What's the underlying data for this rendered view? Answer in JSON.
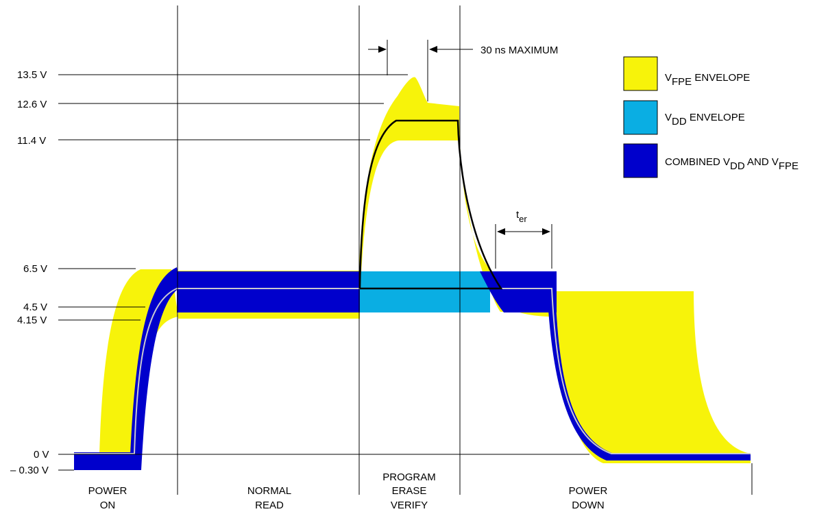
{
  "voltage_labels": [
    "13.5 V",
    "12.6 V",
    "11.4 V",
    "6.5 V",
    "4.5 V",
    "4.15 V",
    "0 V",
    "– 0.30 V"
  ],
  "phases": {
    "power_on": [
      "POWER",
      "ON"
    ],
    "normal_read": [
      "NORMAL",
      "READ"
    ],
    "program_erase_verify": [
      "PROGRAM",
      "ERASE",
      "VERIFY"
    ],
    "power_down": [
      "POWER",
      "DOWN"
    ]
  },
  "annotations": {
    "timing_max": "30 ns MAXIMUM",
    "ter_main": "t",
    "ter_sub": "er"
  },
  "legend": {
    "fpe": {
      "prefix": "V",
      "sub": "FPE",
      "suffix": " ENVELOPE",
      "color": "#f7f30a"
    },
    "dd": {
      "prefix": "V",
      "sub": "DD",
      "suffix": " ENVELOPE",
      "color": "#0aaee3"
    },
    "combined": {
      "prefix": "COMBINED V",
      "sub": "DD",
      "mid": " AND V",
      "sub2": "FPE",
      "color": "#0000cc"
    }
  }
}
